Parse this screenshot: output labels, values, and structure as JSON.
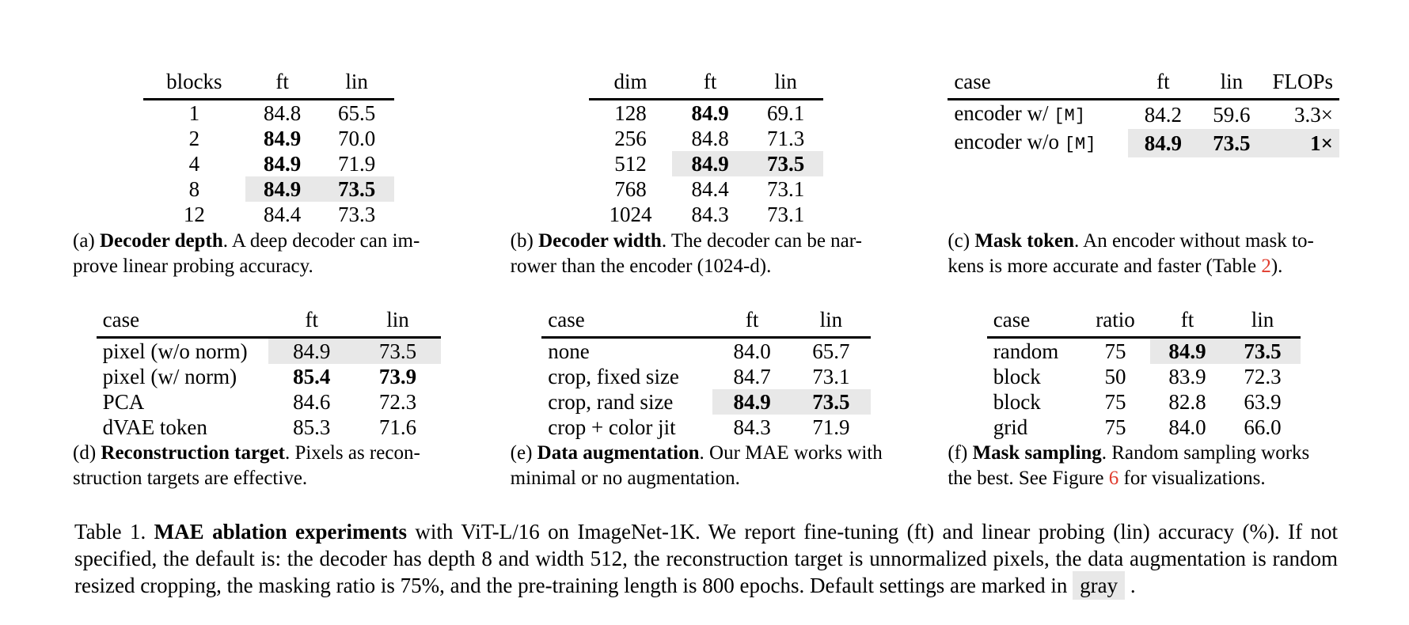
{
  "colors": {
    "background": "#ffffff",
    "text": "#000000",
    "highlight_gray": "#e8e8e8",
    "ref_red": "#e03b2d"
  },
  "chart_data": {
    "type": "table",
    "title": "Table 1. MAE ablation experiments",
    "subtables": [
      "Decoder depth",
      "Decoder width",
      "Mask token",
      "Reconstruction target",
      "Data augmentation",
      "Mask sampling"
    ]
  },
  "tables": {
    "a": {
      "headers": [
        "blocks",
        "ft",
        "lin"
      ],
      "rows": [
        [
          "1",
          "84.8",
          "65.5"
        ],
        [
          "2",
          {
            "t": "84.9",
            "bold": true
          },
          "70.0"
        ],
        [
          "4",
          {
            "t": "84.9",
            "bold": true
          },
          "71.9"
        ],
        [
          "8",
          {
            "t": "84.9",
            "bold": true,
            "gray": true
          },
          {
            "t": "73.5",
            "bold": true,
            "gray": true
          }
        ],
        [
          "12",
          "84.4",
          "73.3"
        ]
      ]
    },
    "b": {
      "headers": [
        "dim",
        "ft",
        "lin"
      ],
      "rows": [
        [
          "128",
          {
            "t": "84.9",
            "bold": true
          },
          "69.1"
        ],
        [
          "256",
          "84.8",
          "71.3"
        ],
        [
          "512",
          {
            "t": "84.9",
            "bold": true,
            "gray": true
          },
          {
            "t": "73.5",
            "bold": true,
            "gray": true
          }
        ],
        [
          "768",
          "84.4",
          "73.1"
        ],
        [
          "1024",
          "84.3",
          "73.1"
        ]
      ]
    },
    "c": {
      "headers": [
        "case",
        "ft",
        "lin",
        "FLOPs"
      ],
      "rows": [
        [
          {
            "t": "encoder w/ ",
            "mono": "[M]"
          },
          "84.2",
          "59.6",
          "3.3×"
        ],
        [
          {
            "t": "encoder w/o ",
            "mono": "[M]"
          },
          {
            "t": "84.9",
            "bold": true,
            "gray": true
          },
          {
            "t": "73.5",
            "bold": true,
            "gray": true
          },
          {
            "t": "1×",
            "bold": true,
            "gray": true
          }
        ]
      ]
    },
    "d": {
      "headers": [
        "case",
        "ft",
        "lin"
      ],
      "rows": [
        [
          "pixel (w/o norm)",
          {
            "t": "84.9",
            "gray": true
          },
          {
            "t": "73.5",
            "gray": true
          }
        ],
        [
          "pixel (w/ norm)",
          {
            "t": "85.4",
            "bold": true
          },
          {
            "t": "73.9",
            "bold": true
          }
        ],
        [
          "PCA",
          "84.6",
          "72.3"
        ],
        [
          "dVAE token",
          "85.3",
          "71.6"
        ]
      ]
    },
    "e": {
      "headers": [
        "case",
        "ft",
        "lin"
      ],
      "rows": [
        [
          "none",
          "84.0",
          "65.7"
        ],
        [
          "crop, fixed size",
          "84.7",
          "73.1"
        ],
        [
          "crop, rand size",
          {
            "t": "84.9",
            "bold": true,
            "gray": true
          },
          {
            "t": "73.5",
            "bold": true,
            "gray": true
          }
        ],
        [
          "crop + color jit",
          "84.3",
          "71.9"
        ]
      ]
    },
    "f": {
      "headers": [
        "case",
        "ratio",
        "ft",
        "lin"
      ],
      "rows": [
        [
          "random",
          "75",
          {
            "t": "84.9",
            "bold": true,
            "gray": true
          },
          {
            "t": "73.5",
            "bold": true,
            "gray": true
          }
        ],
        [
          "block",
          "50",
          "83.9",
          "72.3"
        ],
        [
          "block",
          "75",
          "82.8",
          "63.9"
        ],
        [
          "grid",
          "75",
          "84.0",
          "66.0"
        ]
      ]
    }
  },
  "captions": {
    "a": {
      "tag": "(a) ",
      "title": "Decoder depth",
      "line1_rest": ". A deep decoder can im-",
      "line2_pre": "prove linear probing accuracy.",
      "ref": "",
      "line2_post": ""
    },
    "b": {
      "tag": "(b) ",
      "title": "Decoder width",
      "line1_rest": ". The decoder can be nar-",
      "line2_pre": "rower than the encoder (1024-d).",
      "ref": "",
      "line2_post": ""
    },
    "c": {
      "tag": "(c) ",
      "title": "Mask token",
      "line1_rest": ". An encoder without mask to-",
      "line2_pre": "kens is more accurate and faster (Table ",
      "ref": "2",
      "line2_post": ")."
    },
    "d": {
      "tag": "(d) ",
      "title": "Reconstruction target",
      "line1_rest": ". Pixels as recon-",
      "line2_pre": "struction targets are effective.",
      "ref": "",
      "line2_post": ""
    },
    "e": {
      "tag": "(e) ",
      "title": "Data augmentation",
      "line1_rest": ". Our MAE works with",
      "line2_pre": "minimal or no augmentation.",
      "ref": "",
      "line2_post": ""
    },
    "f": {
      "tag": "(f) ",
      "title": "Mask sampling",
      "line1_rest": ". Random sampling works",
      "line2_pre": "the best. See Figure ",
      "ref": "6",
      "line2_post": " for visualizations."
    }
  },
  "main_caption": {
    "prefix": "Table 1. ",
    "bold": "MAE ablation experiments",
    "middle": " with ViT-L/16 on ImageNet-1K. We report fine-tuning (ft) and linear probing (lin) accuracy (%). If not specified, the default is: the decoder has depth 8 and width 512, the reconstruction target is unnormalized pixels, the data augmentation is random resized cropping, the masking ratio is 75%, and the pre-training length is 800 epochs. Default settings are marked in ",
    "gray_word": "gray",
    "suffix": " ."
  }
}
